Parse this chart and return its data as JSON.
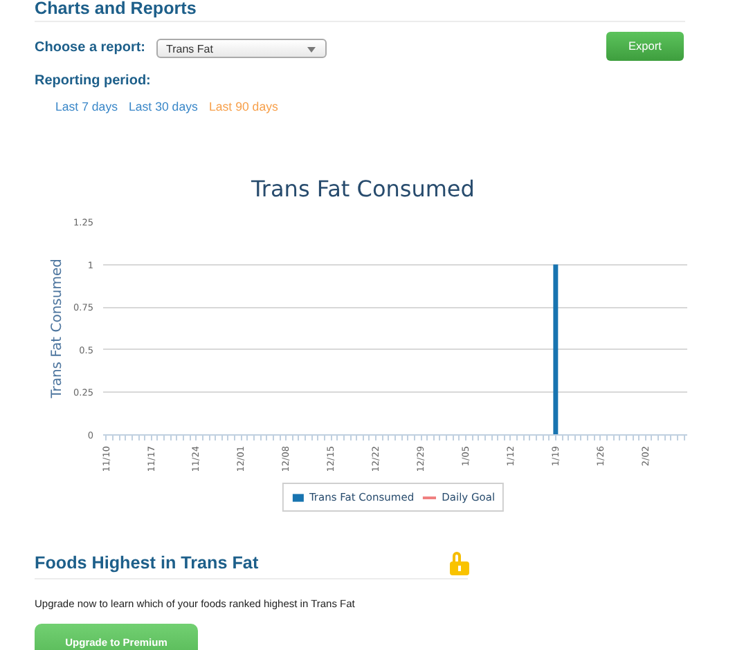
{
  "chart_data": {
    "type": "bar",
    "title": "Trans Fat Consumed",
    "ylabel": "Trans Fat Consumed",
    "categories": [
      "11/10",
      null,
      null,
      null,
      null,
      null,
      null,
      "11/17",
      null,
      null,
      null,
      null,
      null,
      null,
      "11/24",
      null,
      null,
      null,
      null,
      null,
      null,
      "12/01",
      null,
      null,
      null,
      null,
      null,
      null,
      "12/08",
      null,
      null,
      null,
      null,
      null,
      null,
      "12/15",
      null,
      null,
      null,
      null,
      null,
      null,
      "12/22",
      null,
      null,
      null,
      null,
      null,
      null,
      "12/29",
      null,
      null,
      null,
      null,
      null,
      null,
      "1/05",
      null,
      null,
      null,
      null,
      null,
      null,
      "1/12",
      null,
      null,
      null,
      null,
      null,
      null,
      "1/19",
      null,
      null,
      null,
      null,
      null,
      null,
      "1/26",
      null,
      null,
      null,
      null,
      null,
      null,
      "2/02",
      null,
      null,
      null,
      null,
      null,
      null
    ],
    "series": [
      {
        "name": "Trans Fat Consumed",
        "color": "#1874b0",
        "values": [
          null,
          null,
          null,
          null,
          null,
          null,
          null,
          null,
          null,
          null,
          null,
          null,
          null,
          null,
          null,
          null,
          null,
          null,
          null,
          null,
          null,
          null,
          null,
          null,
          null,
          null,
          null,
          null,
          null,
          null,
          null,
          null,
          null,
          null,
          null,
          null,
          null,
          null,
          null,
          null,
          null,
          null,
          null,
          null,
          null,
          null,
          null,
          null,
          null,
          null,
          null,
          null,
          null,
          null,
          null,
          null,
          null,
          null,
          null,
          null,
          null,
          null,
          null,
          null,
          null,
          null,
          null,
          null,
          null,
          null,
          1,
          null,
          null,
          null,
          null,
          null,
          null,
          null,
          null,
          null,
          null,
          null,
          null,
          null,
          null,
          null,
          null,
          null,
          null,
          null,
          null
        ]
      },
      {
        "name": "Daily Goal",
        "type": "line",
        "color": "#f08080",
        "values": [
          null,
          null,
          null,
          null,
          null,
          null,
          null,
          null,
          null,
          null,
          null,
          null,
          null,
          null,
          null,
          null,
          null,
          null,
          null,
          null,
          null,
          null,
          null,
          null,
          null,
          null,
          null,
          null,
          null,
          null,
          null,
          null,
          null,
          null,
          null,
          null,
          null,
          null,
          null,
          null,
          null,
          null,
          null,
          null,
          null,
          null,
          null,
          null,
          null,
          null,
          null,
          null,
          null,
          null,
          null,
          null,
          null,
          null,
          null,
          null,
          null,
          null,
          null,
          null,
          null,
          null,
          null,
          null,
          null,
          null,
          null,
          null,
          null,
          null,
          null,
          null,
          null,
          null,
          null,
          null,
          null,
          null,
          null,
          null,
          null,
          null,
          null,
          null,
          null,
          null,
          null
        ]
      }
    ],
    "ylim": [
      0,
      1.25
    ],
    "yticks": [
      0,
      0.25,
      0.5,
      0.75,
      1,
      1.25
    ],
    "grid": "y",
    "legend": "bottom",
    "annotations": [
      "Charts and Reports",
      "Choose a report:",
      "Trans Fat",
      "Export",
      "Reporting period:",
      "Last 7 days",
      "Last 30 days",
      "Last 90 days",
      "Foods Highest in Trans Fat",
      "Upgrade now to learn which of your foods ranked highest in Trans Fat",
      "Upgrade to Premium"
    ]
  }
}
